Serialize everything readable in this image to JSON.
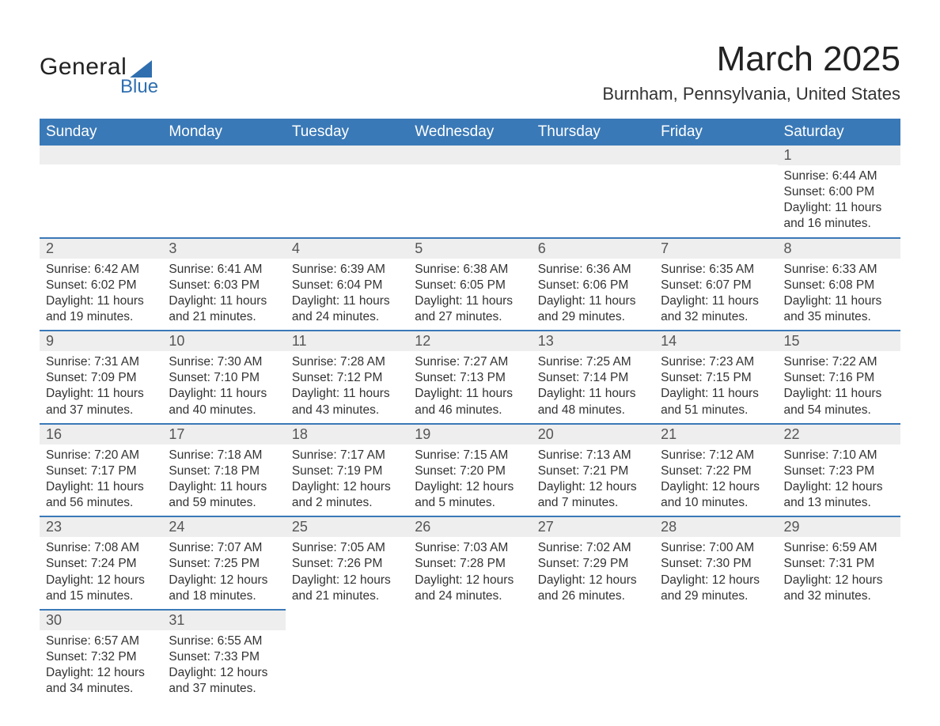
{
  "logo": {
    "general": "General",
    "blue": "Blue"
  },
  "header": {
    "month_title": "March 2025",
    "location": "Burnham, Pennsylvania, United States"
  },
  "colors": {
    "header_bg": "#3a79b7",
    "header_text": "#ffffff",
    "row_divider": "#3a79b7",
    "daynum_bg": "#eeeeee",
    "body_text": "#333333",
    "logo_accent": "#2f6fb0"
  },
  "day_headers": [
    "Sunday",
    "Monday",
    "Tuesday",
    "Wednesday",
    "Thursday",
    "Friday",
    "Saturday"
  ],
  "weeks": [
    [
      null,
      null,
      null,
      null,
      null,
      null,
      {
        "n": "1",
        "sr": "Sunrise: 6:44 AM",
        "ss": "Sunset: 6:00 PM",
        "dl": "Daylight: 11 hours and 16 minutes."
      }
    ],
    [
      {
        "n": "2",
        "sr": "Sunrise: 6:42 AM",
        "ss": "Sunset: 6:02 PM",
        "dl": "Daylight: 11 hours and 19 minutes."
      },
      {
        "n": "3",
        "sr": "Sunrise: 6:41 AM",
        "ss": "Sunset: 6:03 PM",
        "dl": "Daylight: 11 hours and 21 minutes."
      },
      {
        "n": "4",
        "sr": "Sunrise: 6:39 AM",
        "ss": "Sunset: 6:04 PM",
        "dl": "Daylight: 11 hours and 24 minutes."
      },
      {
        "n": "5",
        "sr": "Sunrise: 6:38 AM",
        "ss": "Sunset: 6:05 PM",
        "dl": "Daylight: 11 hours and 27 minutes."
      },
      {
        "n": "6",
        "sr": "Sunrise: 6:36 AM",
        "ss": "Sunset: 6:06 PM",
        "dl": "Daylight: 11 hours and 29 minutes."
      },
      {
        "n": "7",
        "sr": "Sunrise: 6:35 AM",
        "ss": "Sunset: 6:07 PM",
        "dl": "Daylight: 11 hours and 32 minutes."
      },
      {
        "n": "8",
        "sr": "Sunrise: 6:33 AM",
        "ss": "Sunset: 6:08 PM",
        "dl": "Daylight: 11 hours and 35 minutes."
      }
    ],
    [
      {
        "n": "9",
        "sr": "Sunrise: 7:31 AM",
        "ss": "Sunset: 7:09 PM",
        "dl": "Daylight: 11 hours and 37 minutes."
      },
      {
        "n": "10",
        "sr": "Sunrise: 7:30 AM",
        "ss": "Sunset: 7:10 PM",
        "dl": "Daylight: 11 hours and 40 minutes."
      },
      {
        "n": "11",
        "sr": "Sunrise: 7:28 AM",
        "ss": "Sunset: 7:12 PM",
        "dl": "Daylight: 11 hours and 43 minutes."
      },
      {
        "n": "12",
        "sr": "Sunrise: 7:27 AM",
        "ss": "Sunset: 7:13 PM",
        "dl": "Daylight: 11 hours and 46 minutes."
      },
      {
        "n": "13",
        "sr": "Sunrise: 7:25 AM",
        "ss": "Sunset: 7:14 PM",
        "dl": "Daylight: 11 hours and 48 minutes."
      },
      {
        "n": "14",
        "sr": "Sunrise: 7:23 AM",
        "ss": "Sunset: 7:15 PM",
        "dl": "Daylight: 11 hours and 51 minutes."
      },
      {
        "n": "15",
        "sr": "Sunrise: 7:22 AM",
        "ss": "Sunset: 7:16 PM",
        "dl": "Daylight: 11 hours and 54 minutes."
      }
    ],
    [
      {
        "n": "16",
        "sr": "Sunrise: 7:20 AM",
        "ss": "Sunset: 7:17 PM",
        "dl": "Daylight: 11 hours and 56 minutes."
      },
      {
        "n": "17",
        "sr": "Sunrise: 7:18 AM",
        "ss": "Sunset: 7:18 PM",
        "dl": "Daylight: 11 hours and 59 minutes."
      },
      {
        "n": "18",
        "sr": "Sunrise: 7:17 AM",
        "ss": "Sunset: 7:19 PM",
        "dl": "Daylight: 12 hours and 2 minutes."
      },
      {
        "n": "19",
        "sr": "Sunrise: 7:15 AM",
        "ss": "Sunset: 7:20 PM",
        "dl": "Daylight: 12 hours and 5 minutes."
      },
      {
        "n": "20",
        "sr": "Sunrise: 7:13 AM",
        "ss": "Sunset: 7:21 PM",
        "dl": "Daylight: 12 hours and 7 minutes."
      },
      {
        "n": "21",
        "sr": "Sunrise: 7:12 AM",
        "ss": "Sunset: 7:22 PM",
        "dl": "Daylight: 12 hours and 10 minutes."
      },
      {
        "n": "22",
        "sr": "Sunrise: 7:10 AM",
        "ss": "Sunset: 7:23 PM",
        "dl": "Daylight: 12 hours and 13 minutes."
      }
    ],
    [
      {
        "n": "23",
        "sr": "Sunrise: 7:08 AM",
        "ss": "Sunset: 7:24 PM",
        "dl": "Daylight: 12 hours and 15 minutes."
      },
      {
        "n": "24",
        "sr": "Sunrise: 7:07 AM",
        "ss": "Sunset: 7:25 PM",
        "dl": "Daylight: 12 hours and 18 minutes."
      },
      {
        "n": "25",
        "sr": "Sunrise: 7:05 AM",
        "ss": "Sunset: 7:26 PM",
        "dl": "Daylight: 12 hours and 21 minutes."
      },
      {
        "n": "26",
        "sr": "Sunrise: 7:03 AM",
        "ss": "Sunset: 7:28 PM",
        "dl": "Daylight: 12 hours and 24 minutes."
      },
      {
        "n": "27",
        "sr": "Sunrise: 7:02 AM",
        "ss": "Sunset: 7:29 PM",
        "dl": "Daylight: 12 hours and 26 minutes."
      },
      {
        "n": "28",
        "sr": "Sunrise: 7:00 AM",
        "ss": "Sunset: 7:30 PM",
        "dl": "Daylight: 12 hours and 29 minutes."
      },
      {
        "n": "29",
        "sr": "Sunrise: 6:59 AM",
        "ss": "Sunset: 7:31 PM",
        "dl": "Daylight: 12 hours and 32 minutes."
      }
    ],
    [
      {
        "n": "30",
        "sr": "Sunrise: 6:57 AM",
        "ss": "Sunset: 7:32 PM",
        "dl": "Daylight: 12 hours and 34 minutes."
      },
      {
        "n": "31",
        "sr": "Sunrise: 6:55 AM",
        "ss": "Sunset: 7:33 PM",
        "dl": "Daylight: 12 hours and 37 minutes."
      },
      null,
      null,
      null,
      null,
      null
    ]
  ]
}
